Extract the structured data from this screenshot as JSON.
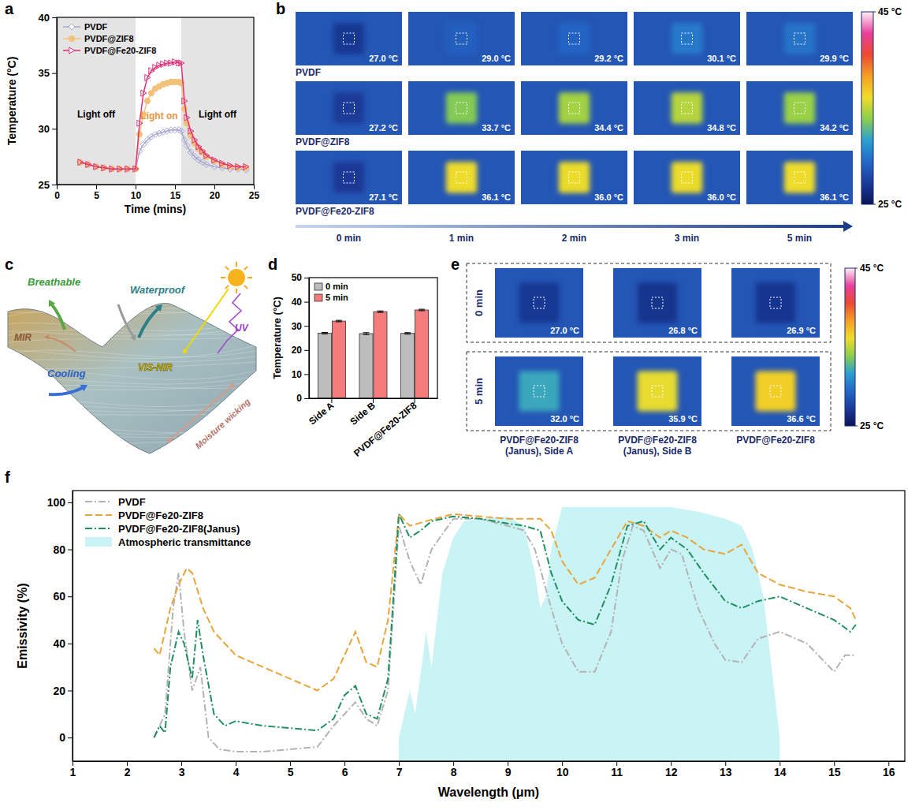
{
  "chart_data": [
    {
      "panel": "a",
      "type": "line",
      "x": [
        3,
        4,
        5,
        6,
        7,
        8,
        9,
        10,
        10.5,
        11,
        11.5,
        12,
        12.5,
        13,
        13.5,
        14,
        14.5,
        15,
        15.5,
        15.8,
        16.2,
        16.5,
        17,
        17.5,
        18,
        18.5,
        19,
        20,
        21,
        22,
        23,
        24
      ],
      "series": [
        {
          "name": "PVDF",
          "color": "#a6a6d4",
          "marker": "diamond",
          "values": [
            27.0,
            26.8,
            26.6,
            26.5,
            26.4,
            26.4,
            26.4,
            26.4,
            28.0,
            28.6,
            29.0,
            29.3,
            29.5,
            29.6,
            29.7,
            29.8,
            29.9,
            29.9,
            29.9,
            29.8,
            29.0,
            28.5,
            27.9,
            27.5,
            27.2,
            27.0,
            26.8,
            26.6,
            26.5,
            26.4,
            26.4,
            26.3
          ]
        },
        {
          "name": "PVDF@ZIF8",
          "color": "#f3c27a",
          "marker": "hexagon",
          "values": [
            27.0,
            26.8,
            26.6,
            26.5,
            26.4,
            26.4,
            26.4,
            26.4,
            29.5,
            31.3,
            32.5,
            33.2,
            33.6,
            33.8,
            34.0,
            34.1,
            34.2,
            34.2,
            34.2,
            34.1,
            31.8,
            30.5,
            29.4,
            28.7,
            28.2,
            27.9,
            27.5,
            27.1,
            26.8,
            26.6,
            26.5,
            26.5
          ]
        },
        {
          "name": "PVDF@Fe20-ZIF8",
          "color": "#e0307a",
          "marker": "triangle",
          "values": [
            27.0,
            26.8,
            26.6,
            26.5,
            26.4,
            26.4,
            26.4,
            26.4,
            30.5,
            33.2,
            34.6,
            35.2,
            35.5,
            35.7,
            35.8,
            35.9,
            35.9,
            36.0,
            35.9,
            35.9,
            32.5,
            31.0,
            29.8,
            29.0,
            28.4,
            28.0,
            27.6,
            27.2,
            26.9,
            26.7,
            26.6,
            26.6
          ]
        }
      ],
      "xlim": [
        0,
        25
      ],
      "xticks": [
        0,
        5,
        10,
        15,
        20,
        25
      ],
      "ylim": [
        25,
        40
      ],
      "yticks": [
        25,
        30,
        35,
        40
      ],
      "x_label": "Time (mins)",
      "y_label": "Temperature (°C)",
      "legend": "top-left",
      "regions": [
        {
          "from": 0,
          "to": 10,
          "text": "Light off",
          "y": 31
        },
        {
          "from": 15.8,
          "to": 25,
          "text": "Light off",
          "y": 31
        }
      ],
      "annotations": [
        {
          "text": "Light on",
          "x": 13,
          "y": 30.9
        }
      ]
    },
    {
      "panel": "d",
      "type": "bar",
      "categories": [
        "Side A",
        "Side B",
        "PVDF@Fe20-ZIF8"
      ],
      "series": [
        {
          "name": "0 min",
          "color": "#bdbdbd",
          "values": [
            27.0,
            26.8,
            26.9
          ],
          "errors": [
            0.3,
            0.4,
            0.3
          ]
        },
        {
          "name": "5 min",
          "color": "#f47c7c",
          "values": [
            32.0,
            35.9,
            36.6
          ],
          "errors": [
            0.3,
            0.3,
            0.3
          ]
        }
      ],
      "ylim": [
        0,
        50
      ],
      "yticks": [
        0,
        10,
        20,
        30,
        40,
        50
      ],
      "y_label": "Temperature (°C)",
      "legend": "top-left"
    },
    {
      "panel": "f",
      "type": "line",
      "series": [
        {
          "name": "PVDF",
          "color": "#b3b3b3",
          "line_style": "dash-dot",
          "x": [
            2.5,
            2.7,
            2.85,
            2.95,
            3.05,
            3.2,
            3.35,
            3.5,
            3.7,
            4,
            4.5,
            5,
            5.5,
            5.8,
            6,
            6.2,
            6.4,
            6.6,
            6.8,
            7,
            7.2,
            7.4,
            7.6,
            8,
            8.5,
            9,
            9.3,
            9.5,
            9.8,
            10,
            10.3,
            10.6,
            10.9,
            11.1,
            11.3,
            11.5,
            11.8,
            12,
            12.2,
            12.5,
            12.8,
            13,
            13.3,
            13.6,
            14,
            14.5,
            15,
            15.2,
            15.4
          ],
          "values": [
            0,
            10,
            55,
            70,
            45,
            20,
            30,
            0,
            -5,
            -6,
            -6,
            -5,
            -4,
            5,
            10,
            15,
            8,
            5,
            20,
            90,
            75,
            65,
            80,
            93,
            93,
            90,
            88,
            80,
            55,
            40,
            28,
            28,
            45,
            75,
            90,
            88,
            72,
            80,
            78,
            55,
            40,
            33,
            32,
            42,
            45,
            40,
            28,
            35,
            35
          ]
        },
        {
          "name": "PVDF@Fe20-ZIF8",
          "color": "#e9a53c",
          "line_style": "dashed",
          "x": [
            2.5,
            2.6,
            2.8,
            2.95,
            3.1,
            3.2,
            3.4,
            3.6,
            4,
            4.5,
            5,
            5.5,
            5.8,
            6,
            6.2,
            6.4,
            6.6,
            6.8,
            7,
            7.2,
            7.5,
            8,
            8.5,
            9,
            9.3,
            9.6,
            9.8,
            10,
            10.3,
            10.6,
            10.9,
            11.2,
            11.5,
            11.8,
            12,
            12.3,
            12.6,
            13,
            13.3,
            13.6,
            14,
            14.5,
            15,
            15.3,
            15.4
          ],
          "values": [
            38,
            35,
            55,
            65,
            72,
            70,
            55,
            45,
            35,
            30,
            25,
            20,
            25,
            35,
            45,
            32,
            30,
            50,
            95,
            90,
            92,
            95,
            94,
            93,
            93,
            93,
            88,
            75,
            65,
            68,
            80,
            92,
            90,
            85,
            88,
            85,
            80,
            78,
            82,
            70,
            65,
            62,
            60,
            55,
            50
          ]
        },
        {
          "name": "PVDF@Fe20-ZIF8(Janus)",
          "color": "#1f8f5f",
          "line_style": "dash-dot",
          "x": [
            2.5,
            2.6,
            2.7,
            2.8,
            2.95,
            3.05,
            3.2,
            3.3,
            3.4,
            3.6,
            3.8,
            4,
            4.5,
            5,
            5.5,
            5.8,
            6,
            6.2,
            6.4,
            6.6,
            6.8,
            7,
            7.2,
            7.4,
            7.6,
            8,
            8.5,
            9,
            9.3,
            9.6,
            9.8,
            10,
            10.3,
            10.6,
            10.9,
            11.2,
            11.5,
            11.8,
            12,
            12.3,
            12.6,
            13,
            13.3,
            13.6,
            14,
            14.5,
            15,
            15.3,
            15.4
          ],
          "values": [
            0,
            5,
            2,
            30,
            45,
            40,
            25,
            50,
            35,
            10,
            5,
            7,
            5,
            4,
            3,
            8,
            18,
            22,
            10,
            8,
            25,
            95,
            85,
            88,
            92,
            94,
            93,
            91,
            90,
            88,
            70,
            58,
            50,
            48,
            65,
            90,
            92,
            80,
            85,
            80,
            70,
            58,
            55,
            58,
            60,
            55,
            50,
            45,
            48
          ]
        },
        {
          "name": "Atmospheric transmittance",
          "type": "area",
          "color": "#c9f3f5",
          "x": [
            7,
            7.2,
            7.3,
            7.5,
            7.6,
            7.8,
            8,
            8.2,
            8.5,
            9,
            9.3,
            9.5,
            9.6,
            9.7,
            9.8,
            10,
            11,
            12,
            12.5,
            13,
            13.3,
            13.5,
            13.7,
            13.9,
            14
          ],
          "values": [
            0,
            20,
            10,
            45,
            30,
            70,
            85,
            92,
            93,
            94,
            90,
            70,
            55,
            60,
            80,
            98,
            98,
            98,
            96,
            93,
            90,
            80,
            60,
            20,
            0
          ]
        }
      ],
      "xlim": [
        1,
        16.3
      ],
      "xticks": [
        1,
        2,
        3,
        4,
        5,
        6,
        7,
        8,
        9,
        10,
        11,
        12,
        13,
        14,
        15,
        16
      ],
      "ylim": [
        -10,
        105
      ],
      "yticks": [
        0,
        20,
        40,
        60,
        80,
        100
      ],
      "x_label": "Wavelength (μm)",
      "y_label": "Emissivity (%)",
      "legend": "top-left"
    }
  ],
  "thermal_b": {
    "panel": "b",
    "columns": [
      "0 min",
      "1 min",
      "2 min",
      "3 min",
      "5 min"
    ],
    "rows": [
      {
        "name": "PVDF",
        "values": [
          {
            "value": 27.0,
            "label": "27.0 °C"
          },
          {
            "value": 29.0,
            "label": "29.0 °C"
          },
          {
            "value": 29.2,
            "label": "29.2 °C"
          },
          {
            "value": 30.1,
            "label": "30.1 °C"
          },
          {
            "value": 29.9,
            "label": "29.9 °C"
          }
        ]
      },
      {
        "name": "PVDF@ZIF8",
        "values": [
          {
            "value": 27.2,
            "label": "27.2 °C"
          },
          {
            "value": 33.7,
            "label": "33.7 °C"
          },
          {
            "value": 34.4,
            "label": "34.4 °C"
          },
          {
            "value": 34.8,
            "label": "34.8 °C"
          },
          {
            "value": 34.2,
            "label": "34.2 °C"
          }
        ]
      },
      {
        "name": "PVDF@Fe20-ZIF8",
        "values": [
          {
            "value": 27.1,
            "label": "27.1 °C"
          },
          {
            "value": 36.1,
            "label": "36.1 °C"
          },
          {
            "value": 36.0,
            "label": "36.0 °C"
          },
          {
            "value": 36.0,
            "label": "36.0 °C"
          },
          {
            "value": 36.1,
            "label": "36.1 °C"
          }
        ]
      }
    ],
    "colorbar": {
      "range": [
        25,
        45
      ],
      "ticks": [
        {
          "value": 45,
          "label": "45 °C"
        },
        {
          "value": 25,
          "label": "25 °C"
        }
      ]
    }
  },
  "schematic_c": {
    "panel": "c",
    "labels": [
      "Breathable",
      "Waterproof",
      "UV",
      "MIR",
      "Cooling",
      "VIS-NIR",
      "Moisture wicking"
    ]
  },
  "thermal_e": {
    "panel": "e",
    "columns": [
      "PVDF@Fe20-ZIF8 (Janus), Side A",
      "PVDF@Fe20-ZIF8 (Janus), Side B",
      "PVDF@Fe20-ZIF8"
    ],
    "rows": [
      {
        "name": "0 min",
        "values": [
          {
            "value": 27.0,
            "label": "27.0 °C"
          },
          {
            "value": 26.8,
            "label": "26.8 °C"
          },
          {
            "value": 26.9,
            "label": "26.9 °C"
          }
        ]
      },
      {
        "name": "5 min",
        "values": [
          {
            "value": 32.0,
            "label": "32.0 °C"
          },
          {
            "value": 35.9,
            "label": "35.9 °C"
          },
          {
            "value": 36.6,
            "label": "36.6 °C"
          }
        ]
      }
    ],
    "colorbar": {
      "range": [
        25,
        45
      ],
      "ticks": [
        {
          "value": 45,
          "label": "45 °C"
        },
        {
          "value": 25,
          "label": "25 °C"
        }
      ]
    }
  }
}
